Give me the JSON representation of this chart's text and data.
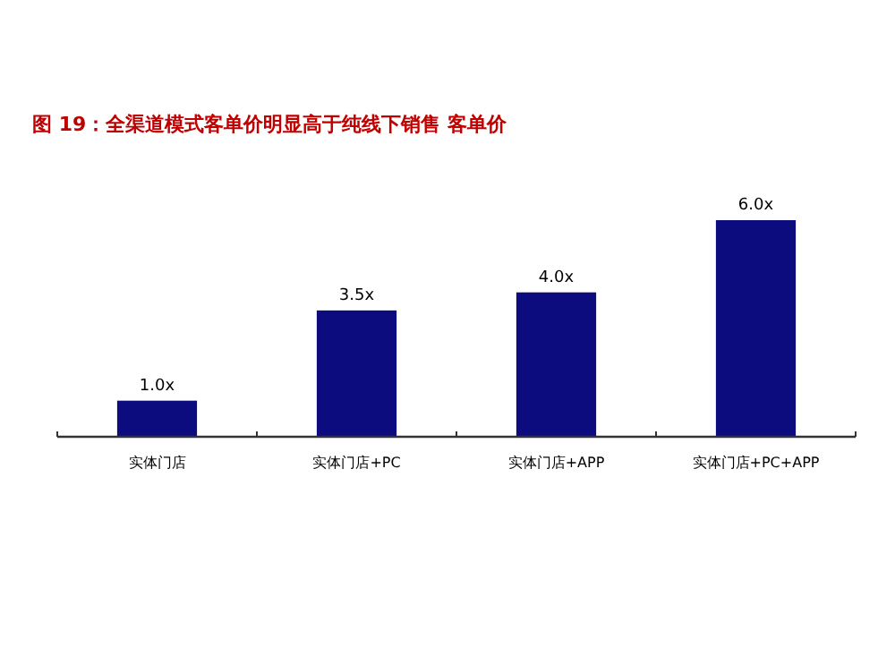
{
  "chart_data": {
    "type": "bar",
    "title": "图 19：全渠道模式客单价明显高于纯线下销售 客单价",
    "categories": [
      "实体门店",
      "实体门店+PC",
      "实体门店+APP",
      "实体门店+PC+APP"
    ],
    "values": [
      1.0,
      3.5,
      4.0,
      6.0
    ],
    "value_labels": [
      "1.0x",
      "3.5x",
      "4.0x",
      "6.0x"
    ],
    "color": "#0c0c7e",
    "tick_labels": "x"
  }
}
